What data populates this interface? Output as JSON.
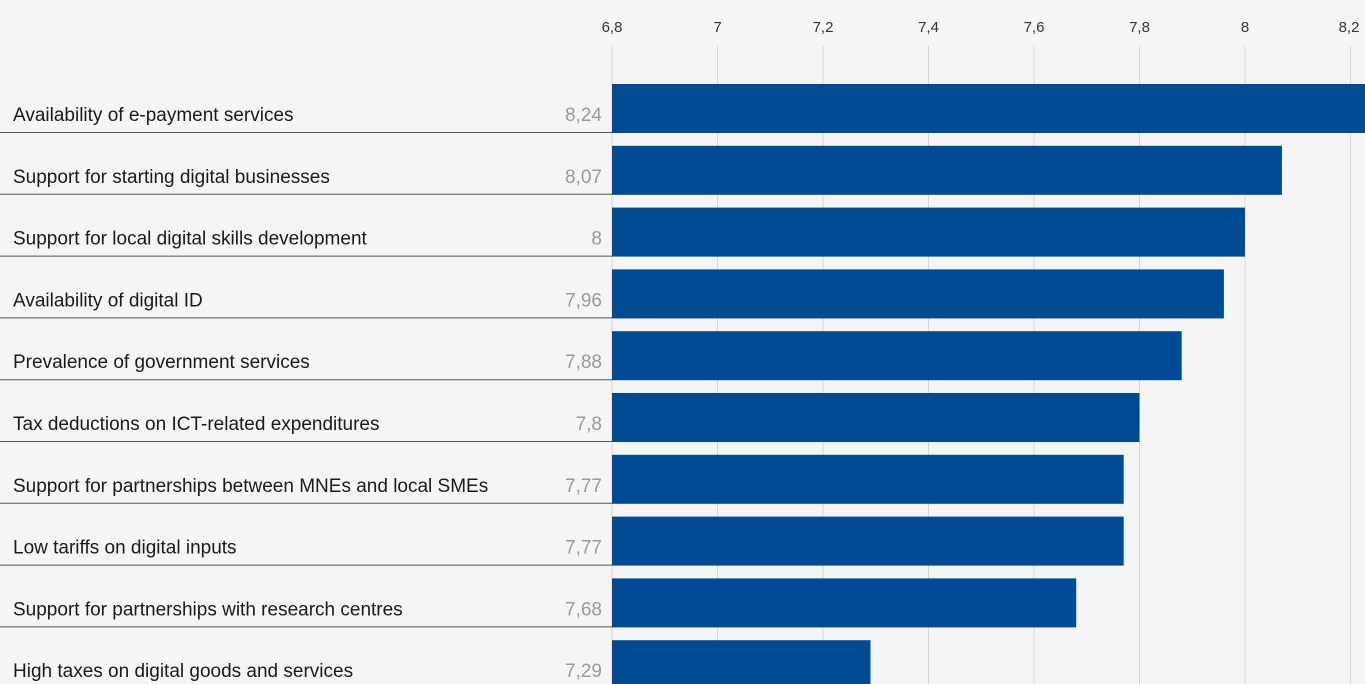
{
  "chart_data": {
    "type": "bar",
    "orientation": "horizontal",
    "title": "",
    "xlabel": "",
    "ylabel": "",
    "xlim": [
      6.8,
      8.24
    ],
    "ticks": [
      6.8,
      7,
      7.2,
      7.4,
      7.6,
      7.8,
      8,
      8.2
    ],
    "tick_labels": [
      "6,8",
      "7",
      "7,2",
      "7,4",
      "7,6",
      "7,8",
      "8",
      "8,2"
    ],
    "grid": true,
    "axis_position": "top",
    "categories": [
      "Availability of e-payment services",
      "Support for starting digital businesses",
      "Support for local digital skills development",
      "Availability of digital ID",
      "Prevalence of government services",
      "Tax deductions on ICT-related expenditures",
      "Support for partnerships between MNEs and local SMEs",
      "Low tariffs on digital inputs",
      "Support for partnerships with research centres",
      "High taxes on digital goods and services"
    ],
    "values": [
      8.24,
      8.07,
      8,
      7.96,
      7.88,
      7.8,
      7.77,
      7.77,
      7.68,
      7.29
    ],
    "value_labels": [
      "8,24",
      "8,07",
      "8",
      "7,96",
      "7,88",
      "7,8",
      "7,77",
      "7,77",
      "7,68",
      "7,29"
    ],
    "colors": {
      "bar": "#004b93",
      "background": "#f5f5f5",
      "grid": "#d6d6d6",
      "value_text": "#9a9a9a"
    }
  }
}
